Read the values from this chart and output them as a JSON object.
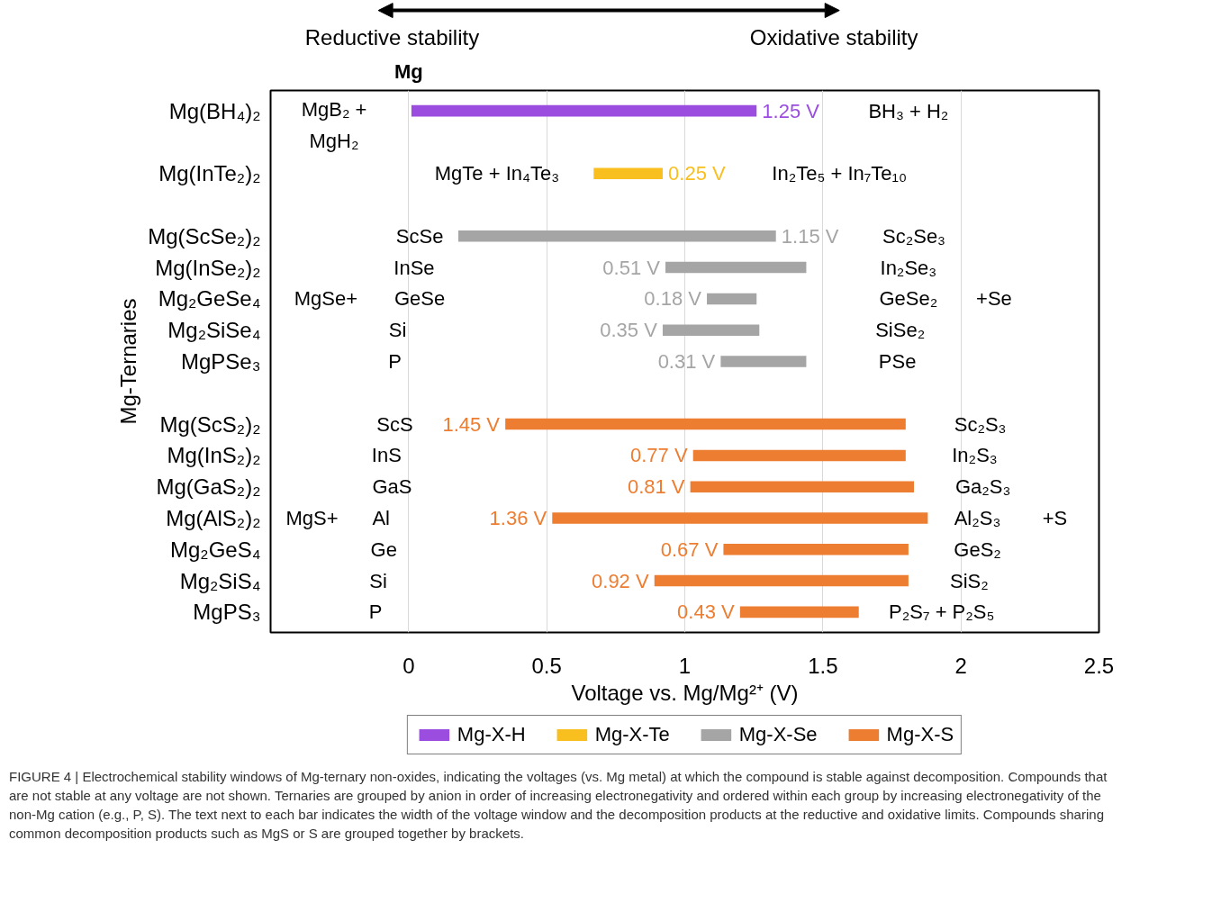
{
  "chart_data": {
    "type": "bar",
    "orientation": "horizontal",
    "xlabel": "Voltage vs. Mg/Mg²⁺ (V)",
    "ylabel": "Mg-Ternaries",
    "categories": [
      "Mg(BH₄)₂",
      null,
      "Mg(InTe₂)₂",
      null,
      "Mg(ScSe₂)₂",
      "Mg(InSe₂)₂",
      "Mg₂GeSe₄",
      "Mg₂SiSe₄",
      "MgPSe₃",
      null,
      "Mg(ScS₂)₂",
      "Mg(InS₂)₂",
      "Mg(GaS₂)₂",
      "Mg(AlS₂)₂",
      "Mg₂GeS₄",
      "Mg₂SiS₄",
      "MgPS₃"
    ],
    "xlim": [
      -0.5,
      2.5
    ],
    "xticks": [
      0,
      0.5,
      1,
      1.5,
      2,
      2.5
    ],
    "grid": "x",
    "legend": "bottom",
    "series": [
      {
        "name": "Mg-X-H",
        "color": "#9b4ddf",
        "base": [
          0.01,
          null,
          null,
          null,
          null,
          null,
          null,
          null,
          null,
          null,
          null,
          null,
          null,
          null,
          null,
          null,
          null
        ],
        "values": [
          1.25,
          null,
          null,
          null,
          null,
          null,
          null,
          null,
          null,
          null,
          null,
          null,
          null,
          null,
          null,
          null,
          null
        ],
        "value_labels": [
          "1.25 V",
          null,
          null,
          null,
          null,
          null,
          null,
          null,
          null,
          null,
          null,
          null,
          null,
          null,
          null,
          null,
          null
        ]
      },
      {
        "name": "Mg-X-Te",
        "color": "#f9bf1f",
        "base": [
          null,
          null,
          0.67,
          null,
          null,
          null,
          null,
          null,
          null,
          null,
          null,
          null,
          null,
          null,
          null,
          null,
          null
        ],
        "values": [
          null,
          null,
          0.25,
          null,
          null,
          null,
          null,
          null,
          null,
          null,
          null,
          null,
          null,
          null,
          null,
          null,
          null
        ],
        "value_labels": [
          null,
          null,
          "0.25 V",
          null,
          null,
          null,
          null,
          null,
          null,
          null,
          null,
          null,
          null,
          null,
          null,
          null,
          null
        ]
      },
      {
        "name": "Mg-X-Se",
        "color": "#a5a5a5",
        "base": [
          null,
          null,
          null,
          null,
          0.18,
          0.93,
          1.08,
          0.92,
          1.13,
          null,
          null,
          null,
          null,
          null,
          null,
          null,
          null
        ],
        "values": [
          null,
          null,
          null,
          null,
          1.15,
          0.51,
          0.18,
          0.35,
          0.31,
          null,
          null,
          null,
          null,
          null,
          null,
          null,
          null
        ],
        "value_labels": [
          null,
          null,
          null,
          null,
          "1.15 V",
          "0.51 V",
          "0.18 V",
          "0.35 V",
          "0.31 V",
          null,
          null,
          null,
          null,
          null,
          null,
          null,
          null
        ]
      },
      {
        "name": "Mg-X-S",
        "color": "#ed7d31",
        "base": [
          null,
          null,
          null,
          null,
          null,
          null,
          null,
          null,
          null,
          null,
          0.35,
          1.03,
          1.02,
          0.52,
          1.14,
          0.89,
          1.2
        ],
        "values": [
          null,
          null,
          null,
          null,
          null,
          null,
          null,
          null,
          null,
          null,
          1.45,
          0.77,
          0.81,
          1.36,
          0.67,
          0.92,
          0.43
        ],
        "value_labels": [
          null,
          null,
          null,
          null,
          null,
          null,
          null,
          null,
          null,
          null,
          "1.45 V",
          "0.77 V",
          "0.81 V",
          "1.36 V",
          "0.67 V",
          "0.92 V",
          "0.43 V"
        ]
      }
    ],
    "annotations": [
      "Reductive stability",
      "Oxidative stability",
      "Mg",
      "MgB₂ +",
      "MgH₂",
      "BH₃ + H₂",
      "MgTe + In₄Te₃",
      "In₂Te₅ + In₇Te₁₀",
      "ScSe",
      "InSe",
      "GeSe",
      "Si",
      "P",
      "Sc₂Se₃",
      "In₂Se₃",
      "GeSe₂",
      "SiSe₂",
      "PSe",
      "MgSe+",
      "+Se",
      "ScS",
      "InS",
      "GaS",
      "Al",
      "Ge",
      "Si",
      "P",
      "Sc₂S₃",
      "In₂S₃",
      "Ga₂S₃",
      "Al₂S₃",
      "GeS₂",
      "SiS₂",
      "P₂S₇ + P₂S₅",
      "MgS+",
      "+S",
      "FIGURE 4 | Electrochemical stability windows of Mg-ternary non-oxides, indicating the voltages (vs. Mg metal) at which the compound is stable against decomposition. Compounds that are not stable at any voltage are not shown. Ternaries are grouped by anion in order of increasing electronegativity and ordered within each group by increasing electronegativity of the non-Mg cation (e.g., P, S). The text next to each bar indicates the width of the voltage window and the decomposition products at the reductive and oxidative limits. Compounds sharing common decomposition products such as MgS or S are grouped together by brackets."
    ]
  }
}
